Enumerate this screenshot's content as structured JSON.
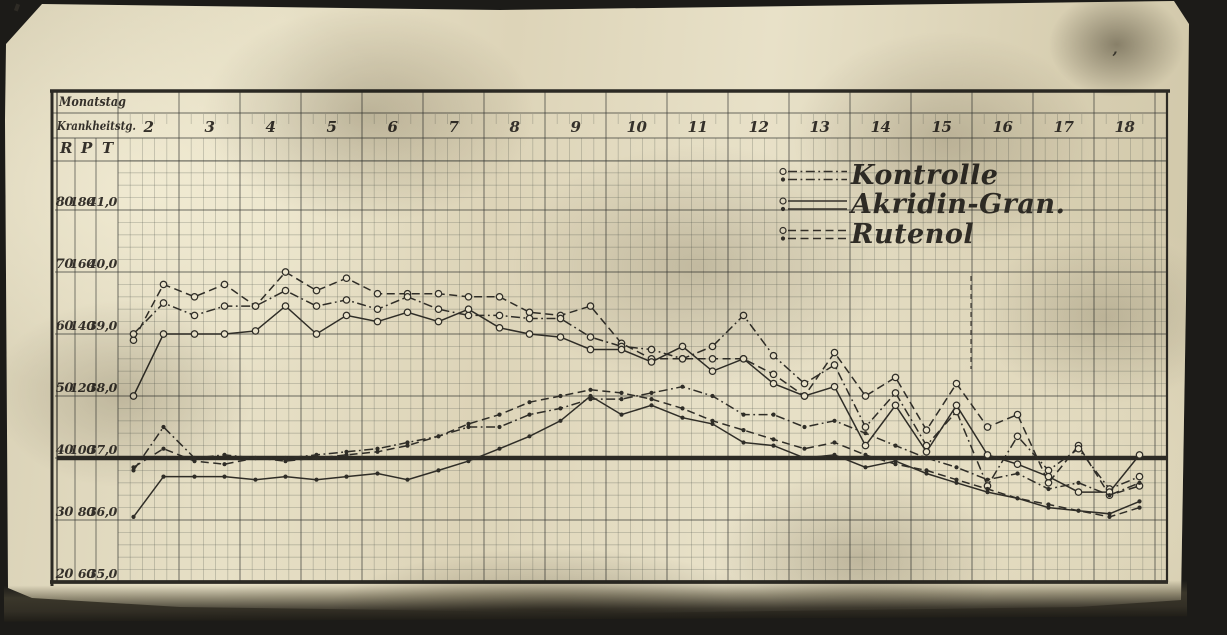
{
  "colors": {
    "photo_background": "#1c1b18",
    "paper": "#e2dabe",
    "ink": "#34302a",
    "grid_thin": "rgba(85,90,82,0.32)",
    "grid_medium": "rgba(62,64,58,0.6)",
    "bold_line": "#2c2a24"
  },
  "labels": {
    "monatstag": "Monatstag",
    "krankheitstag": "Krankheitstg.",
    "r": "R",
    "p": "P",
    "t": "T"
  },
  "legend": [
    {
      "label": "Kontrolle",
      "line": "dashdot"
    },
    {
      "label": "Akridin-Gran.",
      "line": "solid"
    },
    {
      "label": "Rutenol",
      "line": "dashed"
    }
  ],
  "artifact": {
    "top_right_mark": "’"
  },
  "chart_data": {
    "type": "line",
    "title": "",
    "x_axis": {
      "row1_label": "Monatstag",
      "row2_label": "Krankheitstg.",
      "days": [
        "2",
        "3",
        "4",
        "5",
        "6",
        "7",
        "8",
        "9",
        "10",
        "11",
        "12",
        "13",
        "14",
        "15",
        "16",
        "17",
        "18"
      ],
      "points_per_day": 2,
      "note": "two measurements per sick-day (morning / evening)"
    },
    "y_axis": {
      "columns": [
        "R",
        "P",
        "T"
      ],
      "rows": [
        [
          "80",
          "180",
          "41,0"
        ],
        [
          "70",
          "160",
          "40,0"
        ],
        [
          "60",
          "140",
          "39,0"
        ],
        [
          "50",
          "120",
          "38,0"
        ],
        [
          "40",
          "100",
          "37,0"
        ],
        [
          "30",
          "80",
          "36,0"
        ],
        [
          "20",
          "60",
          "35,0"
        ]
      ],
      "T_range": [
        35.0,
        41.0
      ],
      "normal_temperature_line": 37.0
    },
    "annotations": [
      {
        "type": "dashed-vertical-mark",
        "at_day_boundary": 16,
        "t_top": 40.5,
        "t_bottom": 39.0
      }
    ],
    "series": [
      {
        "group": "Rutenol",
        "measure": "T",
        "line": "dashed",
        "marker": "circle",
        "scale": "T",
        "values": [
          38.9,
          39.8,
          39.6,
          39.8,
          39.45,
          40.0,
          39.7,
          39.9,
          39.65,
          39.65,
          39.65,
          39.6,
          39.6,
          39.35,
          39.3,
          39.45,
          38.85,
          38.6,
          38.6,
          38.6,
          38.6,
          38.35,
          38.0,
          38.7,
          38.0,
          38.3,
          37.45,
          38.2,
          37.5,
          37.7,
          36.6,
          37.2,
          36.4,
          36.55
        ]
      },
      {
        "group": "Kontrolle",
        "measure": "T",
        "line": "dashdot",
        "marker": "circle",
        "scale": "T",
        "values": [
          39.0,
          39.5,
          39.3,
          39.45,
          39.45,
          39.7,
          39.45,
          39.55,
          39.4,
          39.6,
          39.4,
          39.3,
          39.3,
          39.25,
          39.25,
          38.95,
          38.8,
          38.75,
          38.6,
          38.8,
          39.3,
          38.65,
          38.2,
          38.5,
          37.5,
          38.05,
          37.2,
          37.75,
          36.55,
          37.35,
          36.8,
          37.15,
          36.5,
          36.7
        ]
      },
      {
        "group": "Akridin-Gran.",
        "measure": "T",
        "line": "solid",
        "marker": "circle",
        "scale": "T",
        "values": [
          38.0,
          39.0,
          39.0,
          39.0,
          39.05,
          39.45,
          39.0,
          39.3,
          39.2,
          39.35,
          39.2,
          39.4,
          39.1,
          39.0,
          38.95,
          38.75,
          38.75,
          38.55,
          38.8,
          38.4,
          38.6,
          38.2,
          38.0,
          38.15,
          37.2,
          37.85,
          37.1,
          37.85,
          37.05,
          36.9,
          36.7,
          36.45,
          36.45,
          37.05
        ]
      },
      {
        "group": "Rutenol",
        "measure": "P",
        "line": "dashed",
        "marker": "dot",
        "scale": "P",
        "values": [
          97,
          103,
          99,
          98,
          100,
          99,
          100,
          101,
          102,
          104,
          107,
          111,
          114,
          118,
          120,
          122,
          121,
          119,
          116,
          112,
          109,
          106,
          103,
          105,
          101,
          98,
          96,
          93,
          90,
          87,
          85,
          83,
          81,
          84
        ]
      },
      {
        "group": "Kontrolle",
        "measure": "P",
        "line": "dashdot",
        "marker": "dot",
        "scale": "P",
        "values": [
          96,
          110,
          100,
          101,
          100,
          100,
          101,
          102,
          103,
          105,
          107,
          110,
          110,
          114,
          116,
          119,
          119,
          121,
          123,
          120,
          114,
          114,
          110,
          112,
          108,
          104,
          100,
          97,
          93,
          95,
          90,
          92,
          88,
          92
        ]
      },
      {
        "group": "Akridin-Gran.",
        "measure": "P",
        "line": "solid",
        "marker": "dot",
        "scale": "P",
        "values": [
          81,
          94,
          94,
          94,
          93,
          94,
          93,
          94,
          95,
          93,
          96,
          99,
          103,
          107,
          112,
          120,
          114,
          117,
          113,
          111,
          105,
          104,
          100,
          101,
          97,
          99,
          95,
          92,
          89,
          87,
          84,
          83,
          82,
          86
        ]
      }
    ]
  }
}
